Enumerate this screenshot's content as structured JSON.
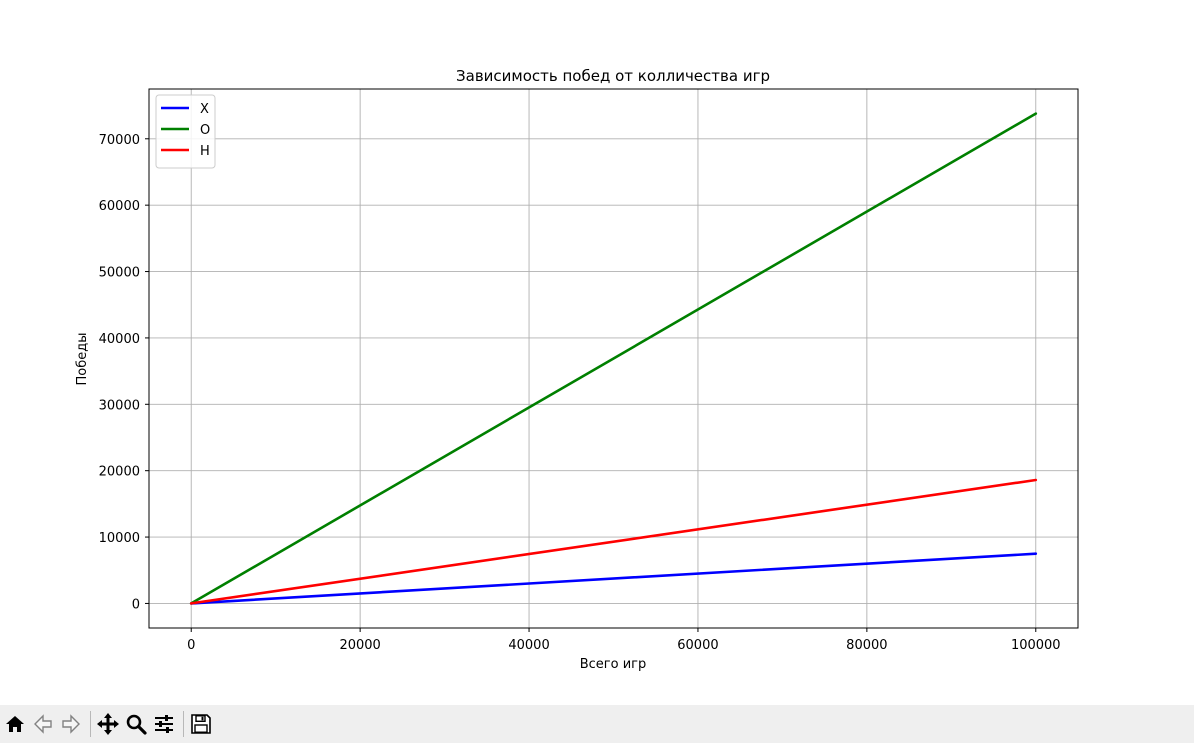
{
  "chart_data": {
    "type": "line",
    "title": "Зависимость побед от колличества игр",
    "xlabel": "Всего игр",
    "ylabel": "Победы",
    "xlim": [
      -5000,
      105000
    ],
    "ylim": [
      -3700,
      77500
    ],
    "xticks": [
      0,
      20000,
      40000,
      60000,
      80000,
      100000
    ],
    "yticks": [
      0,
      10000,
      20000,
      30000,
      40000,
      50000,
      60000,
      70000
    ],
    "grid": true,
    "legend_position": "upper-left",
    "series": [
      {
        "name": "X",
        "color": "#0000ff",
        "x": [
          0,
          100000
        ],
        "y": [
          0,
          7500
        ]
      },
      {
        "name": "O",
        "color": "#008000",
        "x": [
          0,
          100000
        ],
        "y": [
          0,
          73800
        ]
      },
      {
        "name": "H",
        "color": "#ff0000",
        "x": [
          0,
          100000
        ],
        "y": [
          0,
          18600
        ]
      }
    ]
  },
  "toolbar": {
    "buttons": [
      {
        "name": "home-button",
        "icon": "home-icon",
        "enabled": true
      },
      {
        "name": "back-button",
        "icon": "arrow-left-icon",
        "enabled": false
      },
      {
        "name": "forward-button",
        "icon": "arrow-right-icon",
        "enabled": false
      },
      {
        "name": "pan-button",
        "icon": "move-icon",
        "enabled": true
      },
      {
        "name": "zoom-button",
        "icon": "magnifier-icon",
        "enabled": true
      },
      {
        "name": "configure-subplots-button",
        "icon": "sliders-icon",
        "enabled": true
      },
      {
        "name": "save-button",
        "icon": "floppy-disk-icon",
        "enabled": true
      }
    ]
  }
}
